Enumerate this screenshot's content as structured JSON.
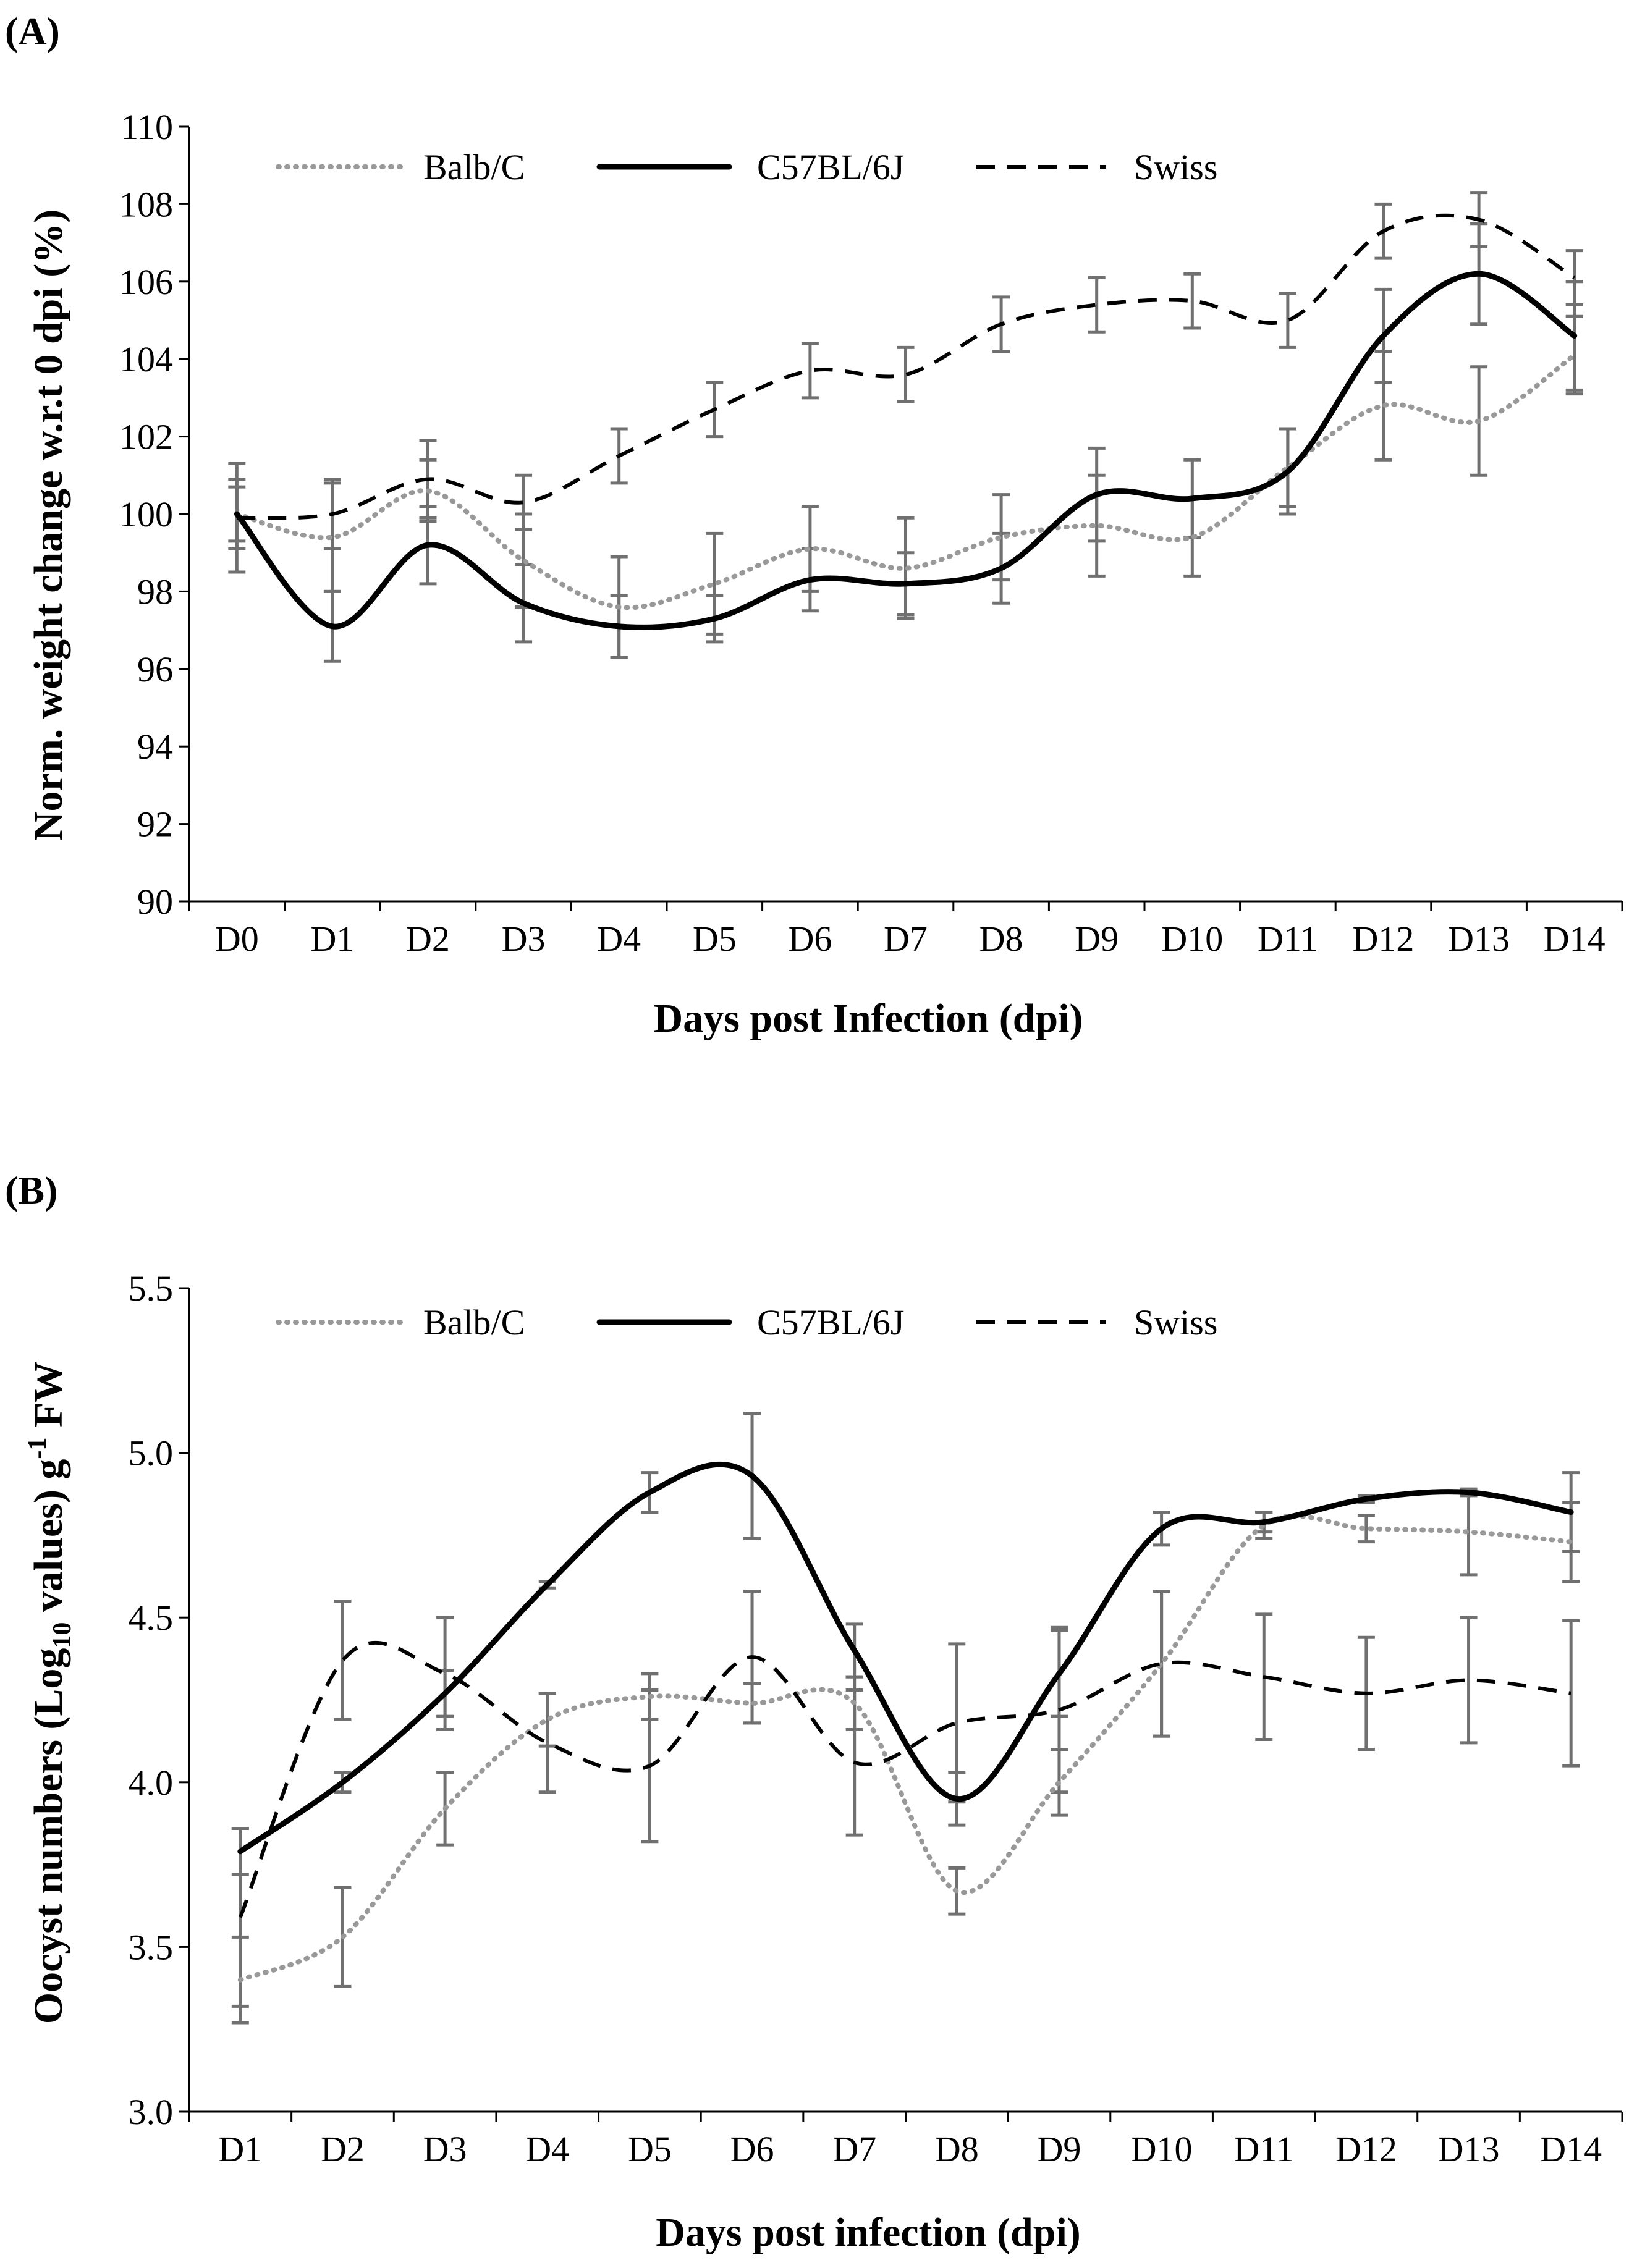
{
  "colors": {
    "balb": "#999999",
    "c57": "#000000",
    "swiss": "#000000",
    "error_bar": "#707070",
    "axis": "#000000"
  },
  "chart_data": [
    {
      "type": "line",
      "panel_label": "(A)",
      "title": "",
      "xlabel": "Days post Infection (dpi)",
      "ylabel": "Norm. weight change w.r.t 0 dpi (%)",
      "ylim": [
        90,
        110
      ],
      "yticks": [
        90,
        92,
        94,
        96,
        98,
        100,
        102,
        104,
        106,
        108,
        110
      ],
      "ytick_labels": [
        "90",
        "92",
        "94",
        "96",
        "98",
        "100",
        "102",
        "104",
        "106",
        "108",
        "110"
      ],
      "categories": [
        "D0",
        "D1",
        "D2",
        "D3",
        "D4",
        "D5",
        "D6",
        "D7",
        "D8",
        "D9",
        "D10",
        "D11",
        "D12",
        "D13",
        "D14"
      ],
      "legend_position": "top",
      "series": [
        {
          "name": "Balb/C",
          "style": "dotted",
          "values": [
            100,
            99.4,
            100.6,
            98.8,
            97.6,
            98.2,
            99.1,
            98.6,
            99.4,
            99.7,
            99.4,
            101.2,
            102.8,
            102.4,
            104.1
          ],
          "errors": [
            0.9,
            1.4,
            0.8,
            1.2,
            1.3,
            1.3,
            1.1,
            1.3,
            1.1,
            1.3,
            1.0,
            1.0,
            1.4,
            1.4,
            1.0
          ]
        },
        {
          "name": "C57BL/6J",
          "style": "solid",
          "values": [
            100,
            97.1,
            99.2,
            97.7,
            97.1,
            97.3,
            98.3,
            98.2,
            98.6,
            100.5,
            100.4,
            101.1,
            104.6,
            106.2,
            104.6
          ],
          "errors": [
            0.7,
            0.9,
            1.0,
            1.0,
            0.8,
            0.6,
            0.8,
            0.8,
            0.9,
            1.2,
            1.0,
            1.1,
            1.2,
            1.3,
            1.4
          ]
        },
        {
          "name": "Swiss",
          "style": "dashed",
          "values": [
            99.9,
            100,
            100.9,
            100.3,
            101.5,
            102.7,
            103.7,
            103.6,
            104.9,
            105.4,
            105.5,
            105.0,
            107.3,
            107.6,
            106.1
          ],
          "errors": [
            1.4,
            0.9,
            1.0,
            0.7,
            0.7,
            0.7,
            0.7,
            0.7,
            0.7,
            0.7,
            0.7,
            0.7,
            0.7,
            0.7,
            0.7
          ]
        }
      ]
    },
    {
      "type": "line",
      "panel_label": "(B)",
      "title": "",
      "xlabel": "Days post infection (dpi)",
      "ylabel_parts": [
        "Oocyst numbers (Log",
        "10",
        " values) g",
        "-1",
        " FW"
      ],
      "ylim": [
        3.0,
        5.5
      ],
      "yticks": [
        3.0,
        3.5,
        4.0,
        4.5,
        5.0,
        5.5
      ],
      "ytick_labels": [
        "3.0",
        "3.5",
        "4.0",
        "4.5",
        "5.0",
        "5.5"
      ],
      "categories": [
        "D1",
        "D2",
        "D3",
        "D4",
        "D5",
        "D6",
        "D7",
        "D8",
        "D9",
        "D10",
        "D11",
        "D12",
        "D13",
        "D14"
      ],
      "legend_position": "top",
      "series": [
        {
          "name": "Balb/C",
          "style": "dotted",
          "values": [
            3.4,
            3.53,
            3.92,
            4.19,
            4.26,
            4.24,
            4.24,
            3.67,
            4.0,
            4.36,
            4.78,
            4.77,
            4.76,
            4.73
          ],
          "errors": [
            0.13,
            0.15,
            0.11,
            0.08,
            0.07,
            0.06,
            0.08,
            0.07,
            0.1,
            0.22,
            0.04,
            0.04,
            0.13,
            0.12
          ]
        },
        {
          "name": "C57BL/6J",
          "style": "solid",
          "values": [
            3.79,
            4.0,
            4.27,
            4.6,
            4.88,
            4.93,
            4.4,
            3.95,
            4.33,
            4.77,
            4.79,
            4.86,
            4.88,
            4.82
          ],
          "errors": [
            0.07,
            0.03,
            0.07,
            0.01,
            0.06,
            0.19,
            0.08,
            0.08,
            0.13,
            0.05,
            0.03,
            0.01,
            0.01,
            0.12
          ]
        },
        {
          "name": "Swiss",
          "style": "dashed",
          "values": [
            3.59,
            4.37,
            4.33,
            4.12,
            4.05,
            4.38,
            4.06,
            4.18,
            4.22,
            4.36,
            4.32,
            4.27,
            4.31,
            4.27
          ],
          "errors": [
            0.27,
            0.18,
            0.17,
            0.15,
            0.23,
            0.2,
            0.22,
            0.24,
            0.25,
            0.22,
            0.19,
            0.17,
            0.19,
            0.22
          ]
        }
      ]
    }
  ]
}
